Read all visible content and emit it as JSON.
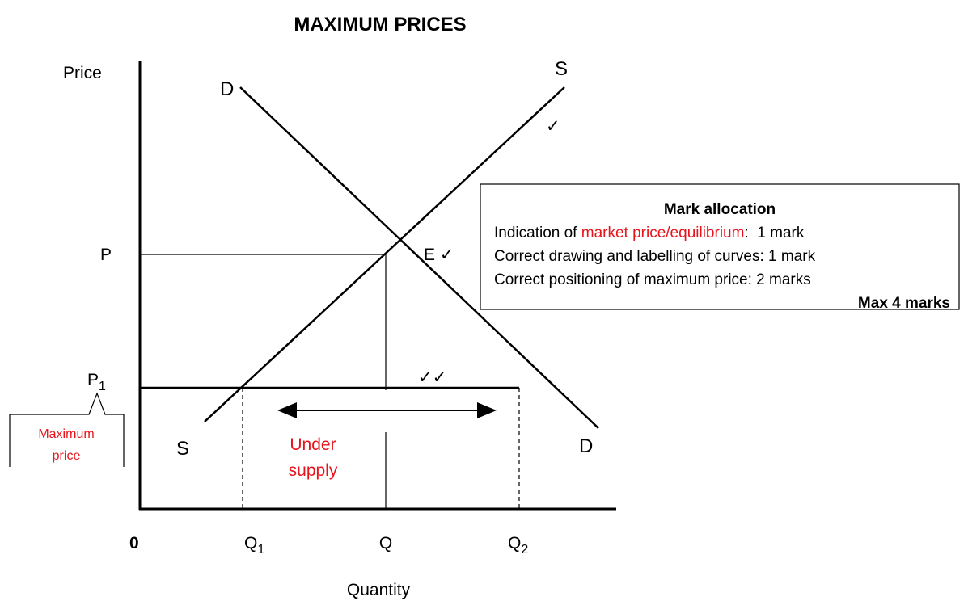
{
  "title": "MAXIMUM PRICES",
  "axes": {
    "y_label": "Price",
    "x_label": "Quantity",
    "origin": "0"
  },
  "curves": {
    "demand_top": "D",
    "demand_bottom": "D",
    "supply_top": "S",
    "supply_bottom": "S"
  },
  "price_levels": {
    "equilibrium": "P",
    "maximum": {
      "main": "P",
      "sub": "1"
    }
  },
  "quantities": {
    "q1": {
      "main": "Q",
      "sub": "1"
    },
    "q": "Q",
    "q2": {
      "main": "Q",
      "sub": "2"
    }
  },
  "equilibrium_label": "E ✓",
  "checks": {
    "supply": "✓",
    "maximum": "✓✓"
  },
  "callout": {
    "line1": "Maximum",
    "line2": "price"
  },
  "shortage": {
    "line1": "Under",
    "line2": "supply"
  },
  "mark_allocation": {
    "heading": "Mark allocation",
    "line1": {
      "prefix": "Indication of ",
      "highlight": "market price/equilibrium",
      "suffix": ":  1 mark"
    },
    "line2": "Correct drawing and labelling of curves: 1 mark",
    "line3": "Correct positioning of maximum price: 2 marks",
    "total": "Max 4 marks"
  }
}
